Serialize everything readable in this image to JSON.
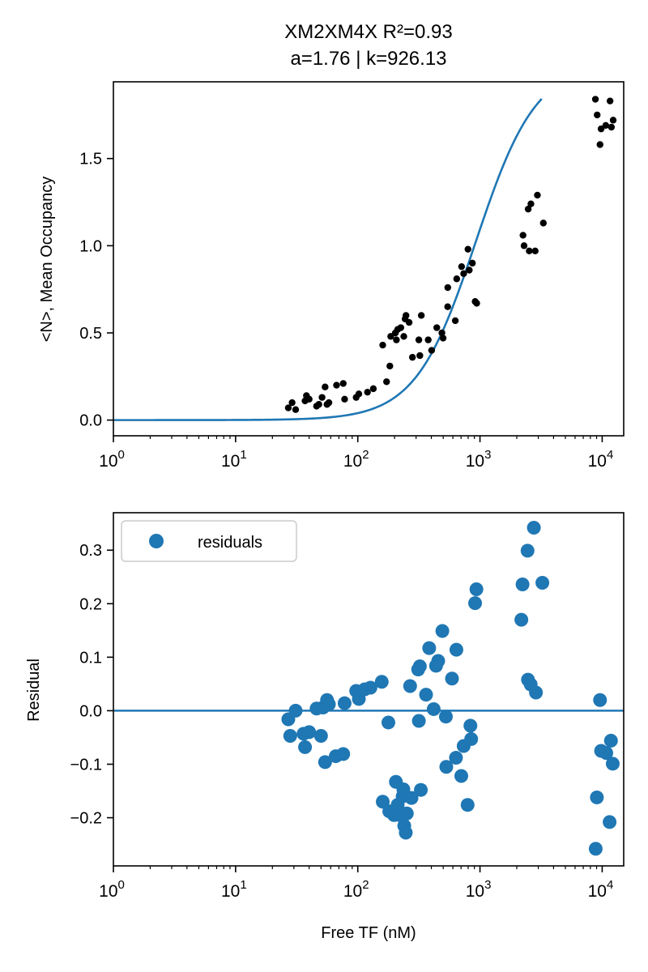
{
  "chart_data": [
    {
      "type": "scatter",
      "title_line1": "XM2XM4X R²=0.93",
      "title_line2": "a=1.76 | k=926.13",
      "xlabel": "",
      "ylabel": "<N>, Mean Occupancy",
      "xscale": "log",
      "xlim": [
        1,
        15000
      ],
      "ylim": [
        -0.09,
        1.94
      ],
      "xticks": [
        {
          "value": 1,
          "label": "10",
          "exp": "0"
        },
        {
          "value": 10,
          "label": "10",
          "exp": "1"
        },
        {
          "value": 100,
          "label": "10",
          "exp": "2"
        },
        {
          "value": 1000,
          "label": "10",
          "exp": "3"
        },
        {
          "value": 10000,
          "label": "10",
          "exp": "4"
        }
      ],
      "yticks": [
        {
          "value": 0.0,
          "label": "0.0"
        },
        {
          "value": 0.5,
          "label": "0.5"
        },
        {
          "value": 1.0,
          "label": "1.0"
        },
        {
          "value": 1.5,
          "label": "1.5"
        }
      ],
      "grid": false,
      "colors": {
        "points": "#000000",
        "fit": "#1f77b4"
      },
      "fit": {
        "a": 1.76,
        "k": 926.13,
        "scale": 2.05,
        "x_range": [
          1,
          3200
        ]
      },
      "points": [
        {
          "x": 27,
          "y": 0.07
        },
        {
          "x": 29,
          "y": 0.1
        },
        {
          "x": 31,
          "y": 0.06
        },
        {
          "x": 37,
          "y": 0.11
        },
        {
          "x": 38,
          "y": 0.14
        },
        {
          "x": 40,
          "y": 0.12
        },
        {
          "x": 46,
          "y": 0.08
        },
        {
          "x": 48,
          "y": 0.09
        },
        {
          "x": 51,
          "y": 0.13
        },
        {
          "x": 54,
          "y": 0.19
        },
        {
          "x": 56,
          "y": 0.09
        },
        {
          "x": 58,
          "y": 0.1
        },
        {
          "x": 67,
          "y": 0.2
        },
        {
          "x": 76,
          "y": 0.21
        },
        {
          "x": 78,
          "y": 0.12
        },
        {
          "x": 97,
          "y": 0.13
        },
        {
          "x": 102,
          "y": 0.15
        },
        {
          "x": 120,
          "y": 0.16
        },
        {
          "x": 134,
          "y": 0.18
        },
        {
          "x": 160,
          "y": 0.43
        },
        {
          "x": 172,
          "y": 0.22
        },
        {
          "x": 183,
          "y": 0.31
        },
        {
          "x": 186,
          "y": 0.48
        },
        {
          "x": 203,
          "y": 0.5
        },
        {
          "x": 207,
          "y": 0.46
        },
        {
          "x": 212,
          "y": 0.52
        },
        {
          "x": 225,
          "y": 0.53
        },
        {
          "x": 238,
          "y": 0.48
        },
        {
          "x": 244,
          "y": 0.58
        },
        {
          "x": 248,
          "y": 0.6
        },
        {
          "x": 263,
          "y": 0.56
        },
        {
          "x": 280,
          "y": 0.36
        },
        {
          "x": 316,
          "y": 0.46
        },
        {
          "x": 322,
          "y": 0.37
        },
        {
          "x": 331,
          "y": 0.6
        },
        {
          "x": 377,
          "y": 0.46
        },
        {
          "x": 402,
          "y": 0.4
        },
        {
          "x": 443,
          "y": 0.53
        },
        {
          "x": 488,
          "y": 0.5
        },
        {
          "x": 499,
          "y": 0.47
        },
        {
          "x": 544,
          "y": 0.65
        },
        {
          "x": 545,
          "y": 0.76
        },
        {
          "x": 628,
          "y": 0.57
        },
        {
          "x": 645,
          "y": 0.81
        },
        {
          "x": 707,
          "y": 0.88
        },
        {
          "x": 735,
          "y": 0.84
        },
        {
          "x": 797,
          "y": 0.98
        },
        {
          "x": 817,
          "y": 0.86
        },
        {
          "x": 867,
          "y": 0.9
        },
        {
          "x": 913,
          "y": 0.68
        },
        {
          "x": 940,
          "y": 0.67
        },
        {
          "x": 2250,
          "y": 1.06
        },
        {
          "x": 2295,
          "y": 1.0
        },
        {
          "x": 2480,
          "y": 1.21
        },
        {
          "x": 2530,
          "y": 0.97
        },
        {
          "x": 2610,
          "y": 1.24
        },
        {
          "x": 2830,
          "y": 0.97
        },
        {
          "x": 2950,
          "y": 1.29
        },
        {
          "x": 3300,
          "y": 1.13
        },
        {
          "x": 8800,
          "y": 1.84
        },
        {
          "x": 9100,
          "y": 1.75
        },
        {
          "x": 9600,
          "y": 1.58
        },
        {
          "x": 9800,
          "y": 1.67
        },
        {
          "x": 10700,
          "y": 1.69
        },
        {
          "x": 11600,
          "y": 1.83
        },
        {
          "x": 11900,
          "y": 1.68
        },
        {
          "x": 12300,
          "y": 1.72
        }
      ]
    },
    {
      "type": "scatter",
      "xlabel": "Free TF (nM)",
      "ylabel": "Residual",
      "xscale": "log",
      "xlim": [
        1,
        15000
      ],
      "ylim": [
        -0.29,
        0.37
      ],
      "xticks": [
        {
          "value": 1,
          "label": "10",
          "exp": "0"
        },
        {
          "value": 10,
          "label": "10",
          "exp": "1"
        },
        {
          "value": 100,
          "label": "10",
          "exp": "2"
        },
        {
          "value": 1000,
          "label": "10",
          "exp": "3"
        },
        {
          "value": 10000,
          "label": "10",
          "exp": "4"
        }
      ],
      "yticks": [
        {
          "value": -0.2,
          "label": "−0.2"
        },
        {
          "value": -0.1,
          "label": "−0.1"
        },
        {
          "value": 0.0,
          "label": "0.0"
        },
        {
          "value": 0.1,
          "label": "0.1"
        },
        {
          "value": 0.2,
          "label": "0.2"
        },
        {
          "value": 0.3,
          "label": "0.3"
        }
      ],
      "grid": false,
      "legend": {
        "placement": "top-left",
        "entries": [
          "residuals"
        ]
      },
      "colors": {
        "points": "#1f77b4",
        "zero_line": "#1f77b4"
      },
      "series": [
        {
          "name": "residuals",
          "points": [
            {
              "x": 27,
              "y": -0.016
            },
            {
              "x": 28,
              "y": -0.047
            },
            {
              "x": 31,
              "y": 0.0
            },
            {
              "x": 36,
              "y": -0.043
            },
            {
              "x": 37,
              "y": -0.068
            },
            {
              "x": 40,
              "y": -0.04
            },
            {
              "x": 46,
              "y": 0.004
            },
            {
              "x": 50,
              "y": -0.047
            },
            {
              "x": 52,
              "y": 0.006
            },
            {
              "x": 54,
              "y": -0.096
            },
            {
              "x": 56,
              "y": 0.02
            },
            {
              "x": 58,
              "y": 0.012
            },
            {
              "x": 66,
              "y": -0.085
            },
            {
              "x": 76,
              "y": -0.081
            },
            {
              "x": 78,
              "y": 0.014
            },
            {
              "x": 97,
              "y": 0.037
            },
            {
              "x": 102,
              "y": 0.022
            },
            {
              "x": 114,
              "y": 0.04
            },
            {
              "x": 127,
              "y": 0.043
            },
            {
              "x": 157,
              "y": 0.054
            },
            {
              "x": 160,
              "y": -0.17
            },
            {
              "x": 178,
              "y": -0.022
            },
            {
              "x": 181,
              "y": -0.188
            },
            {
              "x": 198,
              "y": -0.195
            },
            {
              "x": 205,
              "y": -0.133
            },
            {
              "x": 212,
              "y": -0.176
            },
            {
              "x": 220,
              "y": -0.195
            },
            {
              "x": 233,
              "y": -0.16
            },
            {
              "x": 236,
              "y": -0.147
            },
            {
              "x": 240,
              "y": -0.215
            },
            {
              "x": 247,
              "y": -0.228
            },
            {
              "x": 252,
              "y": -0.192
            },
            {
              "x": 268,
              "y": 0.046
            },
            {
              "x": 275,
              "y": -0.163
            },
            {
              "x": 312,
              "y": 0.077
            },
            {
              "x": 316,
              "y": -0.019
            },
            {
              "x": 322,
              "y": 0.083
            },
            {
              "x": 328,
              "y": -0.148
            },
            {
              "x": 362,
              "y": 0.03
            },
            {
              "x": 384,
              "y": 0.117
            },
            {
              "x": 418,
              "y": 0.003
            },
            {
              "x": 437,
              "y": 0.084
            },
            {
              "x": 455,
              "y": 0.093
            },
            {
              "x": 492,
              "y": 0.149
            },
            {
              "x": 526,
              "y": -0.011
            },
            {
              "x": 530,
              "y": -0.105
            },
            {
              "x": 590,
              "y": 0.06
            },
            {
              "x": 636,
              "y": -0.088
            },
            {
              "x": 641,
              "y": 0.114
            },
            {
              "x": 703,
              "y": -0.122
            },
            {
              "x": 735,
              "y": -0.066
            },
            {
              "x": 792,
              "y": -0.176
            },
            {
              "x": 835,
              "y": -0.028
            },
            {
              "x": 847,
              "y": -0.053
            },
            {
              "x": 912,
              "y": 0.201
            },
            {
              "x": 935,
              "y": 0.227
            },
            {
              "x": 2180,
              "y": 0.17
            },
            {
              "x": 2230,
              "y": 0.236
            },
            {
              "x": 2450,
              "y": 0.299
            },
            {
              "x": 2470,
              "y": 0.058
            },
            {
              "x": 2600,
              "y": 0.049
            },
            {
              "x": 2760,
              "y": 0.342
            },
            {
              "x": 2870,
              "y": 0.034
            },
            {
              "x": 3240,
              "y": 0.239
            },
            {
              "x": 8850,
              "y": -0.258
            },
            {
              "x": 9050,
              "y": -0.162
            },
            {
              "x": 9600,
              "y": 0.02
            },
            {
              "x": 9800,
              "y": -0.075
            },
            {
              "x": 10800,
              "y": -0.079
            },
            {
              "x": 11500,
              "y": -0.208
            },
            {
              "x": 11800,
              "y": -0.056
            },
            {
              "x": 12200,
              "y": -0.099
            }
          ]
        }
      ]
    }
  ]
}
